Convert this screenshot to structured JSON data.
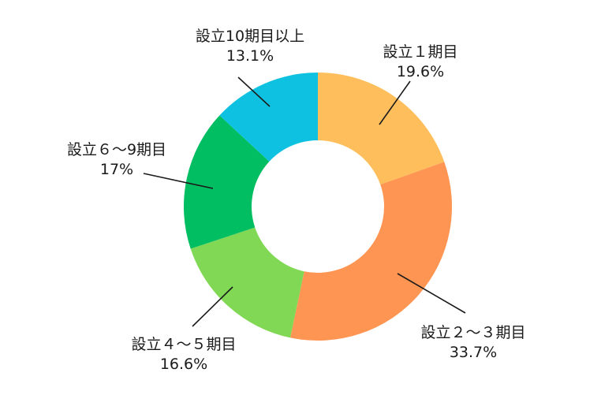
{
  "chart_data": {
    "type": "pie",
    "donut": true,
    "categories": [
      "設立１期目",
      "設立２～３期目",
      "設立４～５期目",
      "設立６～9期目",
      "設立10期目以上"
    ],
    "values": [
      19.6,
      33.7,
      16.6,
      17,
      13.1
    ],
    "value_labels": [
      "19.6%",
      "33.7%",
      "16.6%",
      "17%",
      "13.1%"
    ],
    "colors": [
      "#FFBE5C",
      "#FF9552",
      "#80D855",
      "#00BE61",
      "#0FC1E0"
    ],
    "start_angle": "top",
    "direction": "clockwise",
    "legend": "none"
  }
}
